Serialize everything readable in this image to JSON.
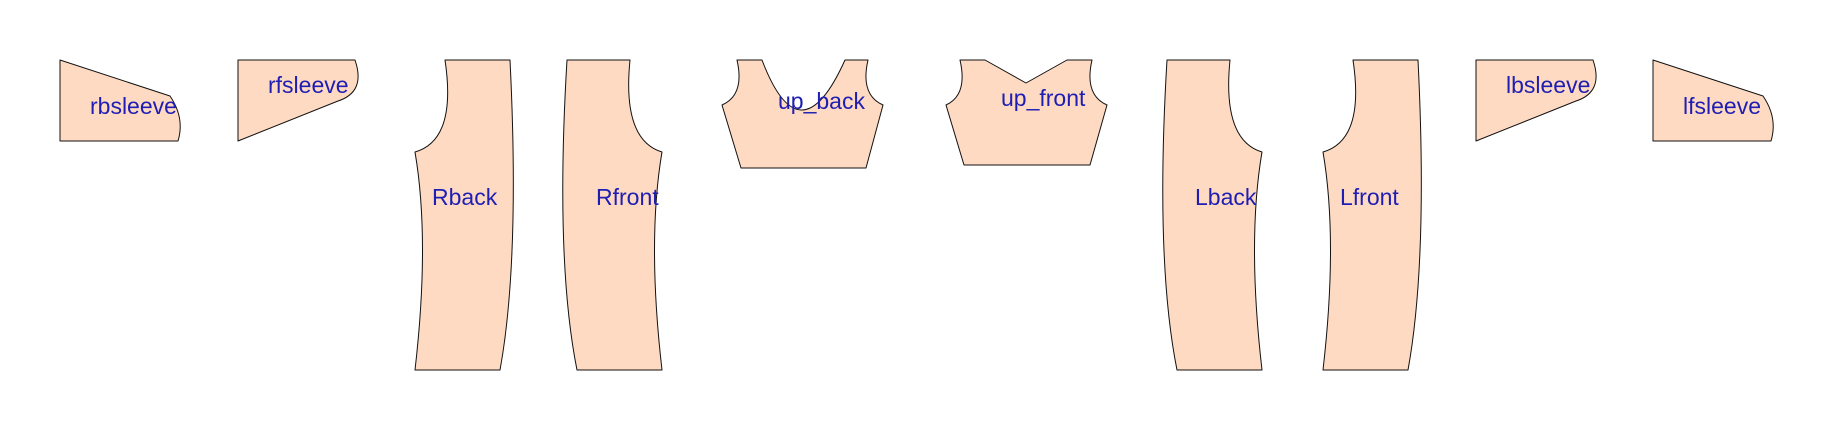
{
  "colors": {
    "fill": "#FFDAC2",
    "stroke": "#111111",
    "label": "#1E1EB4",
    "background": "#FFFFFF"
  },
  "pieces": [
    {
      "id": "rbsleeve",
      "label": "rbsleeve"
    },
    {
      "id": "rfsleeve",
      "label": "rfsleeve"
    },
    {
      "id": "rback",
      "label": "Rback"
    },
    {
      "id": "rfront",
      "label": "Rfront"
    },
    {
      "id": "up-back",
      "label": "up_back"
    },
    {
      "id": "up-front",
      "label": "up_front"
    },
    {
      "id": "lback",
      "label": "Lback"
    },
    {
      "id": "lfront",
      "label": "Lfront"
    },
    {
      "id": "lbsleeve",
      "label": "lbsleeve"
    },
    {
      "id": "lfsleeve",
      "label": "lfsleeve"
    }
  ]
}
